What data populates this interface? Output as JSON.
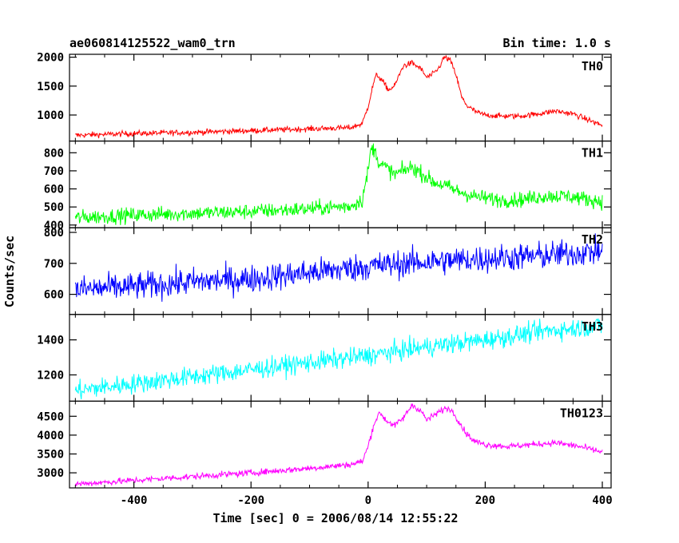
{
  "title_left": "ae060814125522_wam0_trn",
  "title_right": "Bin time: 1.0 s",
  "chart_data": {
    "type": "line",
    "xlabel": "Time [sec] 0 = 2006/08/14 12:55:22",
    "ylabel": "Counts/sec",
    "xlim": [
      -510,
      415
    ],
    "xticks": [
      -400,
      -200,
      0,
      200,
      400
    ],
    "panels": [
      {
        "name": "TH0",
        "color": "#ff0000",
        "ylim": [
          550,
          2050
        ],
        "yticks": [
          1000,
          1500,
          2000
        ],
        "noise": 35,
        "x": [
          -500,
          -400,
          -300,
          -200,
          -100,
          -30,
          -10,
          0,
          10,
          15,
          25,
          35,
          45,
          60,
          75,
          90,
          100,
          110,
          120,
          130,
          140,
          150,
          160,
          170,
          185,
          200,
          230,
          260,
          290,
          320,
          350,
          380,
          400
        ],
        "y": [
          650,
          680,
          700,
          730,
          760,
          780,
          850,
          1150,
          1580,
          1700,
          1580,
          1430,
          1500,
          1850,
          1900,
          1800,
          1650,
          1700,
          1800,
          2000,
          1950,
          1700,
          1300,
          1150,
          1050,
          1000,
          980,
          980,
          1020,
          1070,
          1020,
          900,
          820
        ]
      },
      {
        "name": "TH1",
        "color": "#00ff00",
        "ylim": [
          385,
          865
        ],
        "yticks": [
          400,
          500,
          600,
          700,
          800
        ],
        "noise": 30,
        "x": [
          -500,
          -400,
          -300,
          -200,
          -100,
          -30,
          -10,
          0,
          5,
          10,
          20,
          30,
          45,
          60,
          75,
          90,
          110,
          130,
          150,
          180,
          220,
          260,
          300,
          340,
          400
        ],
        "y": [
          440,
          455,
          465,
          475,
          490,
          505,
          540,
          700,
          820,
          820,
          740,
          720,
          680,
          700,
          720,
          690,
          640,
          620,
          590,
          560,
          540,
          540,
          560,
          560,
          530
        ]
      },
      {
        "name": "TH2",
        "color": "#0000ff",
        "ylim": [
          535,
          815
        ],
        "yticks": [
          600,
          700,
          800
        ],
        "noise": 32,
        "x": [
          -500,
          -400,
          -300,
          -200,
          -100,
          0,
          100,
          200,
          300,
          400
        ],
        "y": [
          615,
          625,
          640,
          650,
          670,
          690,
          705,
          715,
          725,
          740
        ]
      },
      {
        "name": "TH3",
        "color": "#00ffff",
        "ylim": [
          1050,
          1545
        ],
        "yticks": [
          1200,
          1400
        ],
        "noise": 40,
        "x": [
          -500,
          -400,
          -300,
          -200,
          -100,
          0,
          100,
          200,
          300,
          400
        ],
        "y": [
          1110,
          1150,
          1190,
          1230,
          1270,
          1310,
          1360,
          1400,
          1450,
          1480
        ]
      },
      {
        "name": "TH0123",
        "color": "#ff00ff",
        "ylim": [
          2600,
          4900
        ],
        "yticks": [
          3000,
          3500,
          4000,
          4500
        ],
        "noise": 60,
        "x": [
          -500,
          -400,
          -300,
          -200,
          -100,
          -30,
          -10,
          0,
          10,
          20,
          30,
          45,
          60,
          75,
          90,
          100,
          110,
          120,
          130,
          140,
          150,
          165,
          180,
          200,
          240,
          280,
          320,
          360,
          400
        ],
        "y": [
          2700,
          2800,
          2900,
          3000,
          3120,
          3220,
          3300,
          3700,
          4300,
          4600,
          4400,
          4250,
          4450,
          4800,
          4650,
          4400,
          4500,
          4600,
          4700,
          4700,
          4500,
          4100,
          3850,
          3750,
          3700,
          3750,
          3800,
          3700,
          3550
        ]
      }
    ]
  }
}
